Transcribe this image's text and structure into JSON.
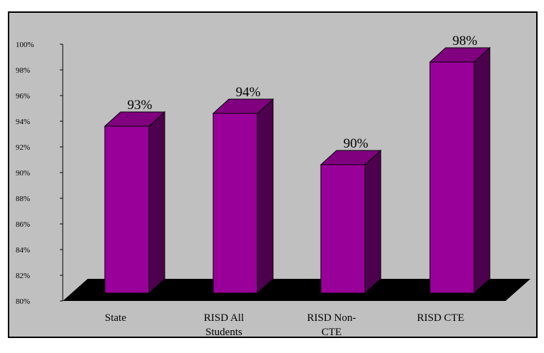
{
  "chart_data": {
    "type": "bar",
    "categories": [
      [
        "State"
      ],
      [
        "RISD All",
        "Students"
      ],
      [
        "RISD Non-",
        "CTE"
      ],
      [
        "RISD CTE"
      ]
    ],
    "values": [
      93,
      94,
      90,
      98
    ],
    "data_labels": [
      "93%",
      "94%",
      "90%",
      "98%"
    ],
    "yticks": [
      "80%",
      "82%",
      "84%",
      "86%",
      "88%",
      "90%",
      "92%",
      "94%",
      "96%",
      "98%",
      "100%"
    ],
    "ylim": [
      80,
      100
    ],
    "three_d": true,
    "grid": false,
    "legend": "none"
  },
  "colors": {
    "plot_background": "#c0c0c0",
    "bar_front": "#990099",
    "bar_side": "#4d004d",
    "bar_top": "#800080",
    "floor": "#000000",
    "frame": "#000000"
  }
}
